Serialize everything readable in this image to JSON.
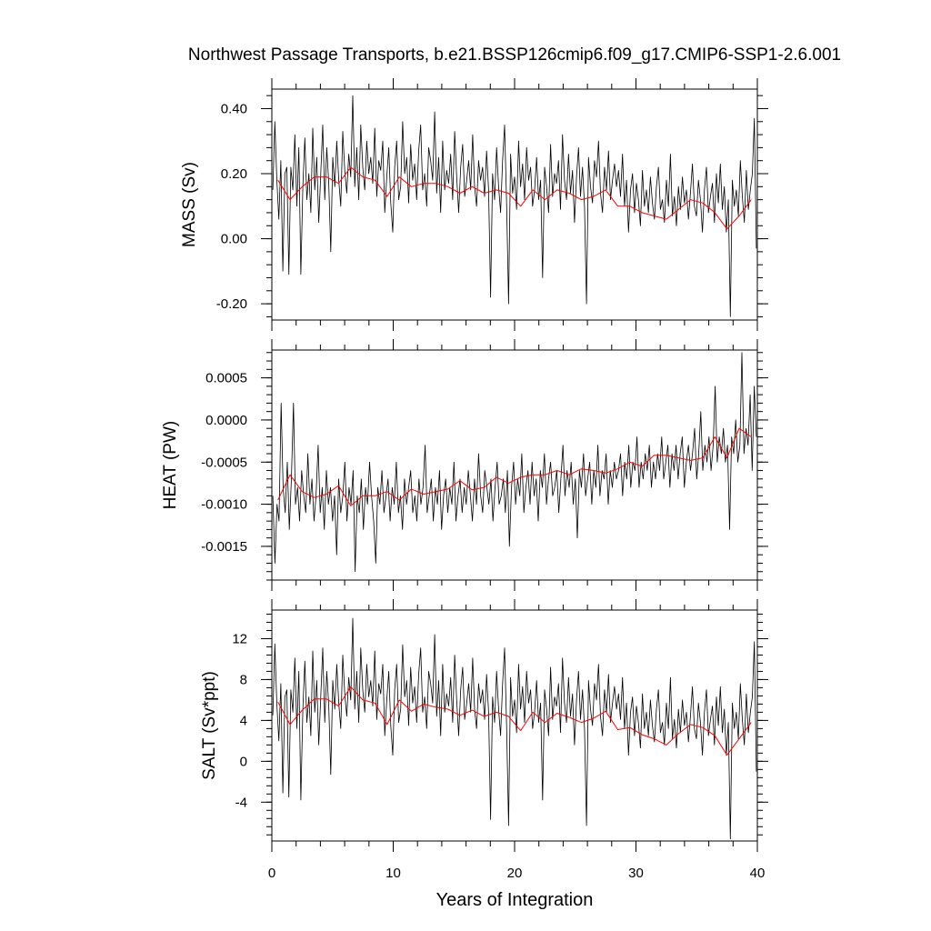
{
  "chart_data": {
    "type": "line",
    "title": "Northwest Passage Transports, b.e21.BSSP126cmip6.f09_g17.CMIP6-SSP1-2.6.001",
    "xlabel": "Years of Integration",
    "xlim": [
      0,
      40
    ],
    "xticks": [
      0,
      10,
      20,
      30,
      40
    ],
    "xtick_labels": [
      "0",
      "10",
      "20",
      "30",
      "40"
    ],
    "series_colors": {
      "monthly": "#000000",
      "annual": "#ff0000"
    },
    "panels": [
      {
        "ylabel": "MASS (Sv)",
        "ylim": [
          -0.25,
          0.46
        ],
        "yticks": [
          -0.2,
          0.0,
          0.2,
          0.4
        ],
        "ytick_labels": [
          "-0.20",
          "0.00",
          "0.20",
          "0.40"
        ],
        "annual_x": [
          0.5,
          1.5,
          2.5,
          3.5,
          4.5,
          5.5,
          6.5,
          7.5,
          8.5,
          9.5,
          10.5,
          11.5,
          12.5,
          13.5,
          14.5,
          15.5,
          16.5,
          17.5,
          18.5,
          19.5,
          20.5,
          21.5,
          22.5,
          23.5,
          24.5,
          25.5,
          26.5,
          27.5,
          28.5,
          29.5,
          30.5,
          31.5,
          32.5,
          33.5,
          34.5,
          35.5,
          36.5,
          37.5,
          38.5,
          39.5
        ],
        "annual_y": [
          0.18,
          0.12,
          0.16,
          0.19,
          0.19,
          0.17,
          0.22,
          0.19,
          0.18,
          0.13,
          0.19,
          0.16,
          0.17,
          0.17,
          0.16,
          0.14,
          0.16,
          0.14,
          0.15,
          0.14,
          0.1,
          0.15,
          0.12,
          0.15,
          0.14,
          0.12,
          0.13,
          0.15,
          0.1,
          0.1,
          0.08,
          0.07,
          0.06,
          0.09,
          0.12,
          0.11,
          0.08,
          0.03,
          0.07,
          0.12
        ],
        "monthly_y": [
          0.15,
          0.36,
          0.18,
          0.06,
          0.24,
          -0.1,
          0.2,
          0.22,
          -0.11,
          0.22,
          0.15,
          0.32,
          0.1,
          0.28,
          -0.11,
          0.16,
          0.31,
          0.12,
          0.2,
          0.08,
          0.34,
          0.15,
          0.25,
          0.05,
          0.2,
          0.35,
          0.12,
          0.28,
          0.17,
          -0.04,
          0.25,
          0.16,
          0.3,
          0.18,
          0.1,
          0.33,
          0.21,
          0.14,
          0.26,
          0.19,
          0.44,
          0.16,
          0.28,
          0.12,
          0.35,
          0.22,
          0.15,
          0.3,
          0.2,
          0.25,
          0.17,
          0.34,
          0.13,
          0.24,
          0.21,
          0.3,
          0.08,
          0.19,
          0.28,
          0.11,
          0.02,
          0.22,
          0.3,
          0.12,
          0.16,
          0.36,
          0.2,
          0.25,
          0.11,
          0.29,
          0.18,
          0.23,
          0.12,
          0.27,
          0.35,
          0.15,
          0.2,
          0.1,
          0.28,
          0.24,
          0.18,
          0.39,
          0.14,
          0.25,
          0.08,
          0.3,
          0.15,
          0.21,
          0.17,
          0.26,
          0.12,
          0.33,
          0.19,
          0.08,
          0.22,
          0.29,
          0.13,
          0.18,
          0.24,
          0.15,
          0.32,
          0.16,
          0.1,
          0.24,
          0.18,
          0.22,
          0.13,
          0.27,
          0.15,
          -0.18,
          0.2,
          0.12,
          0.28,
          0.16,
          0.08,
          0.24,
          0.35,
          0.11,
          -0.2,
          0.26,
          0.14,
          0.19,
          0.09,
          0.3,
          0.16,
          0.23,
          0.12,
          0.28,
          0.18,
          0.22,
          0.1,
          0.15,
          0.25,
          0.12,
          0.18,
          -0.12,
          0.22,
          0.16,
          0.08,
          0.29,
          0.13,
          0.2,
          0.17,
          0.24,
          0.09,
          0.32,
          0.18,
          0.12,
          0.26,
          0.14,
          0.21,
          0.05,
          0.19,
          0.28,
          0.13,
          0.22,
          0.1,
          -0.2,
          0.25,
          0.16,
          0.11,
          0.24,
          0.19,
          0.3,
          0.14,
          0.08,
          0.22,
          0.15,
          0.27,
          0.12,
          0.18,
          0.23,
          0.16,
          0.21,
          0.13,
          0.26,
          0.1,
          0.18,
          0.02,
          0.15,
          0.2,
          0.08,
          0.17,
          0.12,
          0.04,
          0.21,
          0.1,
          0.15,
          0.08,
          0.19,
          0.11,
          0.06,
          0.16,
          0.22,
          0.09,
          0.12,
          0.05,
          0.18,
          0.1,
          0.26,
          0.07,
          0.13,
          0.04,
          0.16,
          0.09,
          0.19,
          0.11,
          0.15,
          0.06,
          0.14,
          0.23,
          0.1,
          0.07,
          0.18,
          0.12,
          0.02,
          0.15,
          0.22,
          0.08,
          0.13,
          0.17,
          0.05,
          0.2,
          0.11,
          0.23,
          0.09,
          0.16,
          0.02,
          0.12,
          -0.24,
          0.18,
          0.1,
          0.15,
          0.07,
          0.24,
          0.13,
          0.05,
          0.21,
          0.09,
          0.15,
          0.2,
          0.37,
          -0.03
        ]
      },
      {
        "ylabel": "HEAT (PW)",
        "ylim": [
          -0.0019,
          0.00083
        ],
        "yticks": [
          -0.0015,
          -0.001,
          -0.0005,
          0.0,
          0.0005
        ],
        "ytick_labels": [
          "-0.0015",
          "-0.0010",
          "-0.0005",
          "0.0000",
          "0.0005"
        ],
        "annual_x": [
          0.5,
          1.5,
          2.5,
          3.5,
          4.5,
          5.5,
          6.5,
          7.5,
          8.5,
          9.5,
          10.5,
          11.5,
          12.5,
          13.5,
          14.5,
          15.5,
          16.5,
          17.5,
          18.5,
          19.5,
          20.5,
          21.5,
          22.5,
          23.5,
          24.5,
          25.5,
          26.5,
          27.5,
          28.5,
          29.5,
          30.5,
          31.5,
          32.5,
          33.5,
          34.5,
          35.5,
          36.5,
          37.5,
          38.5,
          39.5
        ],
        "annual_y": [
          -0.00095,
          -0.00065,
          -0.00085,
          -0.00092,
          -0.00088,
          -0.00078,
          -0.00102,
          -0.0009,
          -0.0009,
          -0.00085,
          -0.00095,
          -0.00082,
          -0.00088,
          -0.00085,
          -0.00082,
          -0.00072,
          -0.00083,
          -0.0008,
          -0.00068,
          -0.00075,
          -0.00068,
          -0.00065,
          -0.00065,
          -0.0006,
          -0.00065,
          -0.00058,
          -0.0006,
          -0.00063,
          -0.00058,
          -0.0005,
          -0.00055,
          -0.00042,
          -0.00042,
          -0.00045,
          -0.00048,
          -0.00045,
          -0.0002,
          -0.00045,
          -0.0001,
          -0.0002
        ],
        "monthly_y": [
          -0.0009,
          -0.0017,
          -0.001,
          -0.0012,
          0.0002,
          -0.0008,
          -0.0011,
          -0.0005,
          -0.0013,
          -0.0007,
          0.0002,
          -0.001,
          -0.0008,
          -0.0012,
          -0.0006,
          -0.0009,
          -0.0011,
          -0.0004,
          -0.001,
          -0.0007,
          -0.0012,
          -0.0009,
          -0.0003,
          -0.0011,
          -0.0008,
          -0.0013,
          -0.0006,
          -0.001,
          -0.0008,
          -0.0012,
          -0.0009,
          -0.0016,
          -0.0007,
          -0.0011,
          -0.0009,
          -0.0005,
          -0.0012,
          -0.0008,
          -0.001,
          -0.0006,
          -0.0018,
          -0.0009,
          -0.0011,
          -0.0007,
          -0.0013,
          -0.0008,
          -0.001,
          -0.0005,
          -0.0009,
          -0.0012,
          -0.0017,
          -0.0008,
          -0.001,
          -0.0006,
          -0.0011,
          -0.0009,
          -0.0007,
          -0.0012,
          -0.0008,
          -0.001,
          -0.0005,
          -0.0011,
          -0.0009,
          -0.0013,
          -0.0007,
          -0.001,
          -0.0008,
          -0.0006,
          -0.0011,
          -0.0009,
          -0.0012,
          -0.0007,
          -0.001,
          -0.0008,
          -0.0003,
          -0.0011,
          -0.0009,
          -0.0007,
          -0.0012,
          -0.0008,
          -0.001,
          -0.0006,
          -0.0013,
          -0.0009,
          -0.0007,
          -0.0011,
          -0.0008,
          -0.001,
          -0.0005,
          -0.0012,
          -0.0009,
          -0.0007,
          -0.0011,
          -0.0008,
          -0.001,
          -0.0006,
          -0.0009,
          -0.0012,
          -0.0007,
          -0.001,
          -0.0004,
          -0.0009,
          -0.0011,
          -0.0006,
          -0.0008,
          -0.001,
          -0.0007,
          -0.0012,
          -0.0008,
          -0.0005,
          -0.001,
          -0.0009,
          -0.0007,
          -0.0011,
          -0.0006,
          -0.0015,
          -0.0008,
          -0.0005,
          -0.001,
          -0.0007,
          -0.0009,
          -0.0004,
          -0.0011,
          -0.0008,
          -0.0006,
          -0.001,
          -0.0005,
          -0.0009,
          -0.0007,
          -0.0012,
          -0.0006,
          -0.0008,
          -0.0004,
          -0.001,
          -0.0007,
          -0.0005,
          -0.0009,
          -0.0008,
          -0.0006,
          -0.0011,
          -0.0007,
          -0.0003,
          -0.0009,
          -0.0006,
          -0.0008,
          -0.0005,
          -0.001,
          -0.0007,
          -0.0014,
          -0.0006,
          -0.0008,
          -0.0004,
          -0.0009,
          -0.0007,
          -0.0005,
          -0.001,
          -0.0006,
          -0.0008,
          -0.0003,
          -0.0009,
          -0.0006,
          -0.0007,
          -0.0004,
          -0.001,
          -0.0006,
          -0.0008,
          -0.0005,
          -0.0007,
          -0.0006,
          -0.0004,
          -0.0009,
          -0.0005,
          -0.0007,
          -0.0003,
          -0.0008,
          -0.0005,
          -0.0006,
          -0.0002,
          -0.0008,
          -0.0005,
          -0.0007,
          -0.0004,
          -0.0006,
          -0.0003,
          -0.0008,
          -0.0005,
          -0.0007,
          -0.0004,
          -0.0006,
          -0.0002,
          -0.0007,
          -0.0005,
          -0.0003,
          -0.0008,
          -0.0004,
          -0.0006,
          -0.0003,
          -0.0007,
          -0.0004,
          -0.0002,
          -0.0008,
          -0.0005,
          -0.0003,
          -0.0006,
          -0.0004,
          -0.0001,
          -0.0007,
          -0.0004,
          0.0001,
          -0.0006,
          -0.0003,
          -0.0005,
          -0.0002,
          -0.0006,
          -0.0003,
          0.0004,
          -0.0005,
          -0.0002,
          -0.0004,
          -0.0001,
          -0.0005,
          -0.0003,
          -0.0013,
          -0.0002,
          -0.0004,
          0.0,
          -0.0005,
          -0.0003,
          0.0008,
          -0.0004,
          -0.0001,
          -0.0003,
          0.0003,
          -0.0006,
          0.0004,
          -0.0002
        ]
      },
      {
        "ylabel": "SALT (Sv*ppt)",
        "ylim": [
          -7.8,
          14.8
        ],
        "yticks": [
          -4,
          0,
          4,
          8,
          12
        ],
        "ytick_labels": [
          "-4",
          "0",
          "4",
          "8",
          "12"
        ],
        "annual_x": [
          0.5,
          1.5,
          2.5,
          3.5,
          4.5,
          5.5,
          6.5,
          7.5,
          8.5,
          9.5,
          10.5,
          11.5,
          12.5,
          13.5,
          14.5,
          15.5,
          16.5,
          17.5,
          18.5,
          19.5,
          20.5,
          21.5,
          22.5,
          23.5,
          24.5,
          25.5,
          26.5,
          27.5,
          28.5,
          29.5,
          30.5,
          31.5,
          32.5,
          33.5,
          34.5,
          35.5,
          36.5,
          37.5,
          38.5,
          39.5
        ],
        "annual_y": [
          5.8,
          3.6,
          5.0,
          6.1,
          6.1,
          5.4,
          7.3,
          6.0,
          5.7,
          3.6,
          6.0,
          4.9,
          5.6,
          5.3,
          5.1,
          4.5,
          5.0,
          4.4,
          4.8,
          4.4,
          3.0,
          4.8,
          3.8,
          4.7,
          4.3,
          3.8,
          4.2,
          4.9,
          3.1,
          3.3,
          2.6,
          2.2,
          1.6,
          2.7,
          3.6,
          3.3,
          2.5,
          0.6,
          2.2,
          3.8
        ],
        "monthly_y": [
          4.5,
          11.5,
          5.6,
          2.0,
          7.6,
          -3.1,
          6.3,
          7.0,
          -3.5,
          7.0,
          4.8,
          10.1,
          3.2,
          8.8,
          -3.8,
          5.1,
          9.8,
          3.8,
          6.3,
          2.5,
          10.8,
          4.8,
          7.9,
          1.6,
          6.3,
          11.1,
          3.8,
          8.8,
          5.4,
          -1.3,
          7.9,
          5.1,
          9.5,
          5.7,
          3.2,
          10.4,
          6.6,
          4.4,
          8.2,
          6.0,
          14.0,
          5.1,
          8.8,
          3.8,
          11.1,
          7.0,
          4.8,
          9.5,
          6.3,
          7.9,
          5.4,
          10.8,
          4.1,
          7.6,
          6.6,
          9.5,
          2.5,
          6.0,
          8.8,
          3.5,
          0.6,
          7.0,
          9.5,
          3.8,
          5.1,
          11.4,
          6.3,
          7.9,
          3.5,
          9.2,
          5.7,
          7.3,
          3.8,
          8.5,
          11.1,
          4.8,
          6.3,
          3.2,
          8.8,
          7.6,
          5.7,
          12.4,
          4.4,
          7.9,
          2.5,
          9.5,
          4.8,
          6.6,
          5.4,
          8.2,
          3.8,
          10.4,
          6.0,
          2.5,
          7.0,
          9.2,
          4.1,
          5.7,
          7.6,
          4.8,
          10.1,
          5.1,
          3.2,
          7.6,
          5.7,
          7.0,
          4.1,
          8.5,
          4.8,
          -5.7,
          6.3,
          3.8,
          8.8,
          5.1,
          2.5,
          7.6,
          11.1,
          3.5,
          -6.3,
          8.2,
          4.4,
          6.0,
          2.8,
          9.5,
          5.1,
          7.3,
          3.8,
          8.8,
          5.7,
          7.0,
          3.2,
          4.8,
          7.9,
          3.8,
          5.7,
          -3.8,
          7.0,
          5.1,
          2.5,
          9.2,
          4.1,
          6.3,
          5.4,
          7.6,
          2.8,
          10.1,
          5.7,
          3.8,
          8.2,
          4.4,
          6.6,
          1.6,
          6.0,
          8.8,
          4.1,
          7.0,
          3.2,
          -6.3,
          7.9,
          5.1,
          3.5,
          7.6,
          6.0,
          9.5,
          4.4,
          2.5,
          7.0,
          4.8,
          8.5,
          3.8,
          5.7,
          7.3,
          5.1,
          6.6,
          4.1,
          8.2,
          3.2,
          5.7,
          0.6,
          4.8,
          6.3,
          2.5,
          5.4,
          3.8,
          1.3,
          6.6,
          3.2,
          4.8,
          2.5,
          6.0,
          3.5,
          1.9,
          5.1,
          7.0,
          2.8,
          3.8,
          1.6,
          5.7,
          3.2,
          8.2,
          2.2,
          4.1,
          1.3,
          5.1,
          2.8,
          6.0,
          3.5,
          4.8,
          1.9,
          4.4,
          7.3,
          3.2,
          2.2,
          5.7,
          3.8,
          0.6,
          4.8,
          7.0,
          2.5,
          4.1,
          5.4,
          1.6,
          6.3,
          3.5,
          7.3,
          2.8,
          5.1,
          0.6,
          3.8,
          -7.6,
          5.7,
          3.2,
          4.8,
          2.2,
          7.6,
          4.1,
          1.6,
          6.6,
          2.8,
          4.8,
          6.3,
          11.7,
          -1.0
        ]
      }
    ]
  }
}
